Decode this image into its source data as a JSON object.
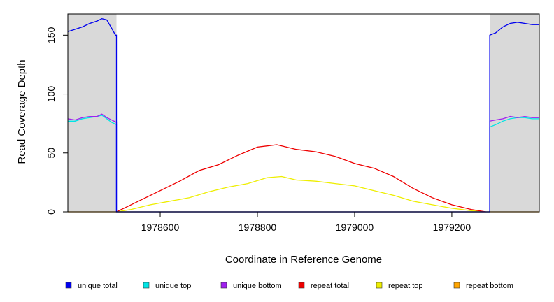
{
  "chart_data": {
    "type": "line",
    "title": "",
    "xlabel": "Coordinate in Reference Genome",
    "ylabel": "Read Coverage Depth",
    "xlim": [
      1978410,
      1979380
    ],
    "ylim": [
      0,
      168
    ],
    "x_ticks": [
      1978600,
      1978800,
      1979000,
      1979200
    ],
    "x_tick_labels": [
      "1978600",
      "1978800",
      "1979000",
      "1979200"
    ],
    "y_ticks": [
      0,
      50,
      100,
      150
    ],
    "y_tick_labels": [
      "0",
      "50",
      "100",
      "150"
    ],
    "grid": false,
    "legend_position": "bottom",
    "shaded_regions": [
      {
        "x_start": 1978410,
        "x_end": 1978510
      },
      {
        "x_start": 1979278,
        "x_end": 1979380
      }
    ],
    "series": [
      {
        "name": "unique total",
        "color": "#0000ee",
        "points": [
          [
            1978410,
            153
          ],
          [
            1978425,
            155
          ],
          [
            1978440,
            157
          ],
          [
            1978455,
            160
          ],
          [
            1978470,
            162
          ],
          [
            1978480,
            164
          ],
          [
            1978490,
            163
          ],
          [
            1978500,
            156
          ],
          [
            1978508,
            150
          ],
          [
            1978510,
            150
          ],
          [
            1978510,
            0
          ],
          [
            1979278,
            0
          ],
          [
            1979278,
            150
          ],
          [
            1979290,
            152
          ],
          [
            1979305,
            157
          ],
          [
            1979320,
            160
          ],
          [
            1979335,
            161
          ],
          [
            1979350,
            160
          ],
          [
            1979365,
            159
          ],
          [
            1979380,
            159
          ]
        ]
      },
      {
        "name": "unique top",
        "color": "#00e5e5",
        "points": [
          [
            1978410,
            77
          ],
          [
            1978425,
            77
          ],
          [
            1978440,
            79
          ],
          [
            1978455,
            80
          ],
          [
            1978470,
            81
          ],
          [
            1978480,
            82
          ],
          [
            1978490,
            79
          ],
          [
            1978500,
            76
          ],
          [
            1978510,
            74
          ],
          [
            1978510,
            0
          ],
          [
            1979278,
            0
          ],
          [
            1979278,
            72
          ],
          [
            1979290,
            74
          ],
          [
            1979305,
            77
          ],
          [
            1979320,
            79
          ],
          [
            1979335,
            80
          ],
          [
            1979350,
            80
          ],
          [
            1979365,
            79
          ],
          [
            1979380,
            79
          ]
        ]
      },
      {
        "name": "unique bottom",
        "color": "#a020f0",
        "points": [
          [
            1978410,
            79
          ],
          [
            1978425,
            78
          ],
          [
            1978440,
            80
          ],
          [
            1978455,
            81
          ],
          [
            1978470,
            81
          ],
          [
            1978480,
            83
          ],
          [
            1978490,
            80
          ],
          [
            1978500,
            78
          ],
          [
            1978510,
            76
          ],
          [
            1978510,
            0
          ],
          [
            1979278,
            0
          ],
          [
            1979278,
            77
          ],
          [
            1979290,
            78
          ],
          [
            1979305,
            79
          ],
          [
            1979320,
            81
          ],
          [
            1979335,
            80
          ],
          [
            1979350,
            81
          ],
          [
            1979365,
            80
          ],
          [
            1979380,
            80
          ]
        ]
      },
      {
        "name": "repeat total",
        "color": "#ee0000",
        "points": [
          [
            1978510,
            0
          ],
          [
            1978530,
            4
          ],
          [
            1978560,
            10
          ],
          [
            1978600,
            18
          ],
          [
            1978640,
            26
          ],
          [
            1978680,
            35
          ],
          [
            1978720,
            40
          ],
          [
            1978760,
            48
          ],
          [
            1978800,
            55
          ],
          [
            1978840,
            57
          ],
          [
            1978880,
            53
          ],
          [
            1978920,
            51
          ],
          [
            1978960,
            47
          ],
          [
            1979000,
            41
          ],
          [
            1979040,
            37
          ],
          [
            1979080,
            30
          ],
          [
            1979120,
            20
          ],
          [
            1979160,
            12
          ],
          [
            1979200,
            6
          ],
          [
            1979240,
            2
          ],
          [
            1979270,
            0
          ]
        ]
      },
      {
        "name": "repeat top",
        "color": "#eeee00",
        "points": [
          [
            1978510,
            0
          ],
          [
            1978540,
            2
          ],
          [
            1978580,
            6
          ],
          [
            1978620,
            9
          ],
          [
            1978660,
            12
          ],
          [
            1978700,
            17
          ],
          [
            1978740,
            21
          ],
          [
            1978780,
            24
          ],
          [
            1978820,
            29
          ],
          [
            1978850,
            30
          ],
          [
            1978880,
            27
          ],
          [
            1978920,
            26
          ],
          [
            1978960,
            24
          ],
          [
            1979000,
            22
          ],
          [
            1979040,
            18
          ],
          [
            1979080,
            14
          ],
          [
            1979120,
            9
          ],
          [
            1979160,
            6
          ],
          [
            1979200,
            3
          ],
          [
            1979240,
            1
          ],
          [
            1979270,
            0
          ]
        ]
      },
      {
        "name": "repeat bottom",
        "color": "#ffa500",
        "points": [
          [
            1978410,
            0
          ],
          [
            1979380,
            0
          ]
        ]
      }
    ]
  }
}
